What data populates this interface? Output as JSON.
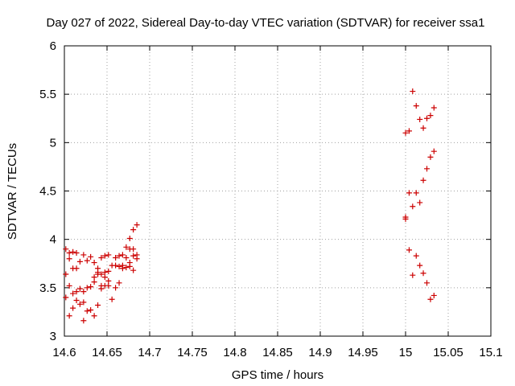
{
  "chart_data": {
    "type": "scatter",
    "title": "Day 027 of 2022, Sidereal Day-to-day VTEC variation (SDTVAR) for receiver ssa1",
    "xlabel": "GPS time / hours",
    "ylabel": "SDTVAR / TECUs",
    "xlim": [
      14.6,
      15.1
    ],
    "ylim": [
      3,
      6
    ],
    "grid": true,
    "marker": "plus",
    "color": "#cc0000",
    "x_ticks": [
      "14.6",
      "14.65",
      "14.7",
      "14.75",
      "14.8",
      "14.85",
      "14.9",
      "14.95",
      "15",
      "15.05",
      "15.1"
    ],
    "y_ticks": [
      "3",
      "3.5",
      "4",
      "4.5",
      "5",
      "5.5",
      "6"
    ],
    "x_tick_values": [
      14.6,
      14.65,
      14.7,
      14.75,
      14.8,
      14.85,
      14.9,
      14.95,
      15.0,
      15.05,
      15.1
    ],
    "y_tick_values": [
      3,
      3.5,
      4,
      4.5,
      5,
      5.5,
      6
    ],
    "series": [
      {
        "name": "SDTVAR",
        "points": [
          [
            14.6017,
            3.9
          ],
          [
            14.6017,
            3.64
          ],
          [
            14.6017,
            3.4
          ],
          [
            14.6058,
            3.86
          ],
          [
            14.6058,
            3.8
          ],
          [
            14.6058,
            3.52
          ],
          [
            14.6058,
            3.21
          ],
          [
            14.61,
            3.87
          ],
          [
            14.61,
            3.7
          ],
          [
            14.61,
            3.44
          ],
          [
            14.61,
            3.29
          ],
          [
            14.6142,
            3.86
          ],
          [
            14.6142,
            3.7
          ],
          [
            14.6142,
            3.46
          ],
          [
            14.6142,
            3.37
          ],
          [
            14.6183,
            3.77
          ],
          [
            14.6183,
            3.49
          ],
          [
            14.6183,
            3.33
          ],
          [
            14.6225,
            3.84
          ],
          [
            14.6225,
            3.46
          ],
          [
            14.6225,
            3.35
          ],
          [
            14.6225,
            3.16
          ],
          [
            14.6267,
            3.78
          ],
          [
            14.6267,
            3.5
          ],
          [
            14.6267,
            3.26
          ],
          [
            14.6308,
            3.82
          ],
          [
            14.6308,
            3.51
          ],
          [
            14.6308,
            3.27
          ],
          [
            14.635,
            3.76
          ],
          [
            14.635,
            3.61
          ],
          [
            14.635,
            3.56
          ],
          [
            14.635,
            3.21
          ],
          [
            14.6392,
            3.7
          ],
          [
            14.6392,
            3.66
          ],
          [
            14.6392,
            3.64
          ],
          [
            14.6392,
            3.32
          ],
          [
            14.6433,
            3.81
          ],
          [
            14.6433,
            3.64
          ],
          [
            14.6433,
            3.52
          ],
          [
            14.6433,
            3.49
          ],
          [
            14.6475,
            3.83
          ],
          [
            14.6475,
            3.66
          ],
          [
            14.6475,
            3.61
          ],
          [
            14.6475,
            3.52
          ],
          [
            14.6517,
            3.84
          ],
          [
            14.6517,
            3.67
          ],
          [
            14.6517,
            3.57
          ],
          [
            14.6517,
            3.52
          ],
          [
            14.6558,
            3.73
          ],
          [
            14.6558,
            3.38
          ],
          [
            14.66,
            3.81
          ],
          [
            14.66,
            3.73
          ],
          [
            14.66,
            3.5
          ],
          [
            14.6642,
            3.83
          ],
          [
            14.6642,
            3.72
          ],
          [
            14.6642,
            3.55
          ],
          [
            14.6683,
            3.84
          ],
          [
            14.6683,
            3.73
          ],
          [
            14.6683,
            3.7
          ],
          [
            14.6725,
            3.92
          ],
          [
            14.6725,
            3.81
          ],
          [
            14.6725,
            3.71
          ],
          [
            14.6767,
            4.01
          ],
          [
            14.6767,
            3.9
          ],
          [
            14.6767,
            3.76
          ],
          [
            14.6767,
            3.72
          ],
          [
            14.6808,
            4.1
          ],
          [
            14.6808,
            3.9
          ],
          [
            14.6808,
            3.83
          ],
          [
            14.6808,
            3.68
          ],
          [
            14.685,
            4.15
          ],
          [
            14.685,
            3.84
          ],
          [
            14.685,
            3.8
          ],
          [
            15.0,
            5.1
          ],
          [
            15.0,
            4.23
          ],
          [
            15.0,
            4.21
          ],
          [
            15.0042,
            5.12
          ],
          [
            15.0042,
            4.48
          ],
          [
            15.0042,
            3.89
          ],
          [
            15.0083,
            5.53
          ],
          [
            15.0083,
            4.34
          ],
          [
            15.0083,
            3.63
          ],
          [
            15.0125,
            5.38
          ],
          [
            15.0125,
            4.48
          ],
          [
            15.0125,
            3.83
          ],
          [
            15.0167,
            5.24
          ],
          [
            15.0167,
            4.38
          ],
          [
            15.0167,
            3.73
          ],
          [
            15.0208,
            5.15
          ],
          [
            15.0208,
            4.61
          ],
          [
            15.0208,
            3.65
          ],
          [
            15.025,
            5.25
          ],
          [
            15.025,
            4.73
          ],
          [
            15.025,
            3.55
          ],
          [
            15.0292,
            5.28
          ],
          [
            15.0292,
            4.85
          ],
          [
            15.0292,
            3.38
          ],
          [
            15.0333,
            5.36
          ],
          [
            15.0333,
            4.91
          ],
          [
            15.0333,
            3.42
          ]
        ]
      }
    ]
  }
}
